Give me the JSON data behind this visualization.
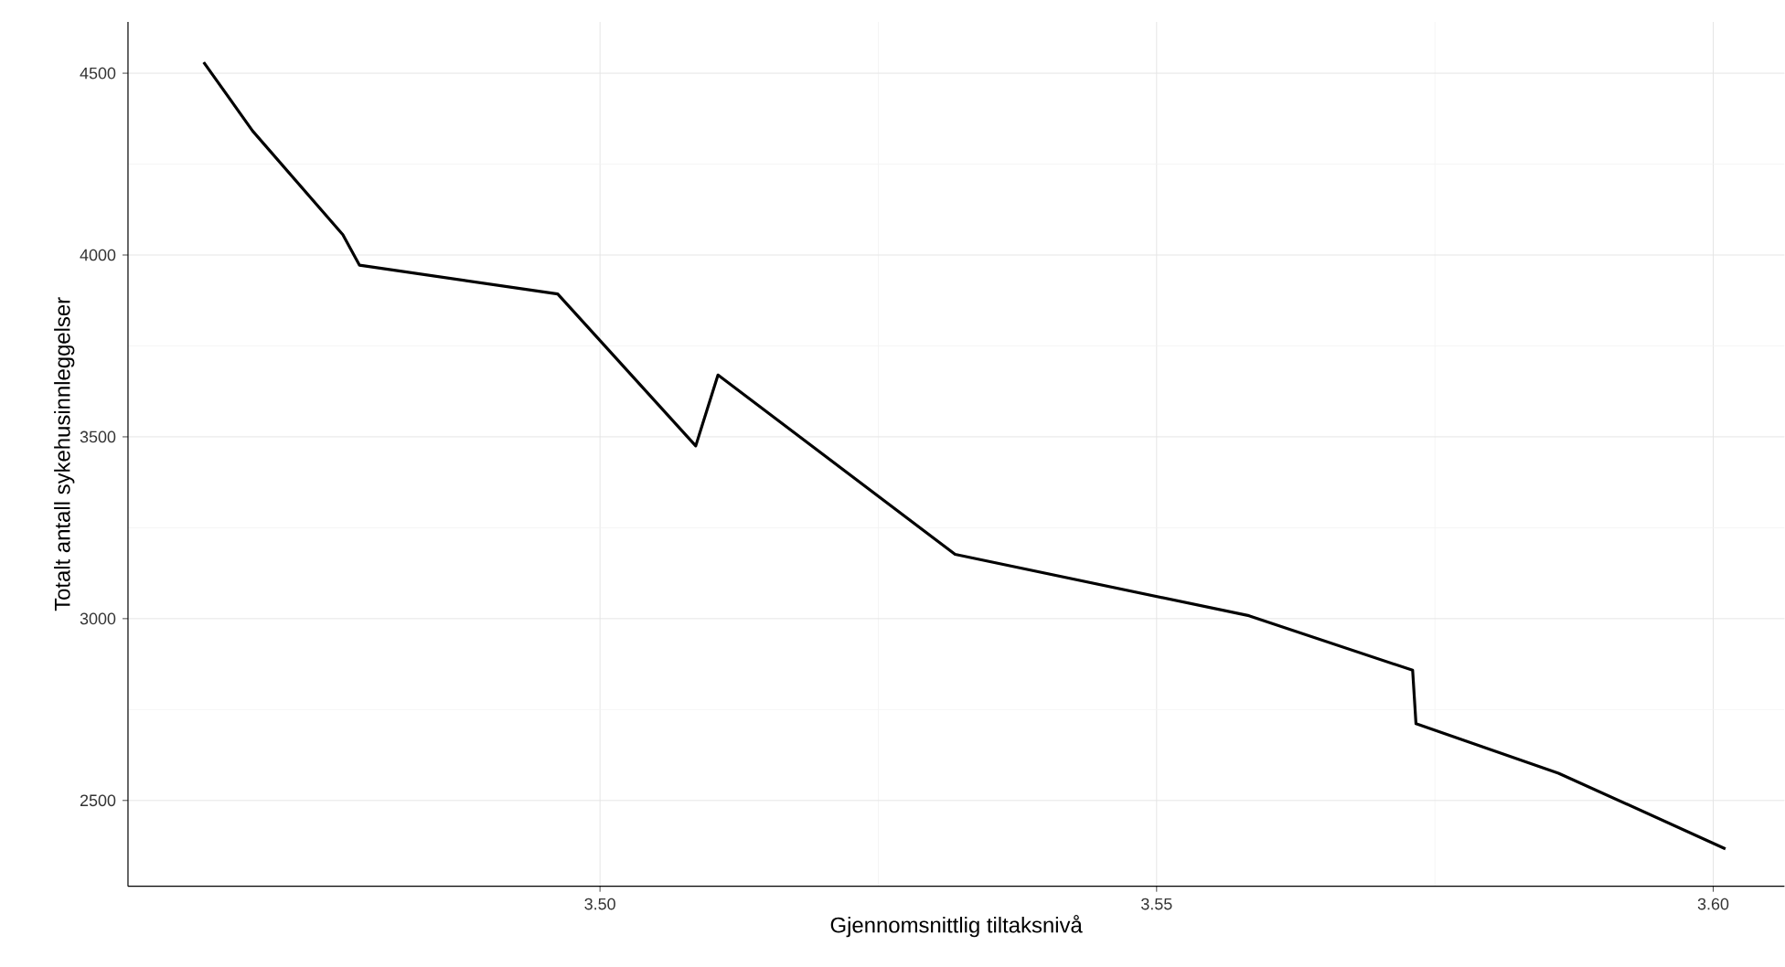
{
  "chart_data": {
    "type": "line",
    "xlabel": "Gjennomsnittlig tiltaksnivå",
    "ylabel": "Totalt antall sykehusinnleggelser",
    "x": [
      3.4644,
      3.4688,
      3.4769,
      3.4784,
      3.4962,
      3.5086,
      3.5106,
      3.5319,
      3.5583,
      3.573,
      3.5733,
      3.5861,
      3.6011
    ],
    "series": [
      {
        "color": "#000000",
        "values": [
          4530,
          4341,
          4056,
          3972,
          3893,
          3475,
          3670,
          3177,
          3008,
          2858,
          2711,
          2575,
          2367
        ]
      }
    ],
    "xlim": [
      3.4576,
      3.6064
    ],
    "ylim": [
      2264,
      4641
    ],
    "xticks": [
      {
        "value": 3.5,
        "label": "3.50"
      },
      {
        "value": 3.55,
        "label": "3.55"
      },
      {
        "value": 3.6,
        "label": "3.60"
      }
    ],
    "yticks": [
      2500,
      3000,
      3500,
      4000,
      4500
    ],
    "grid": true,
    "marker": "none",
    "line_style": "solid"
  }
}
